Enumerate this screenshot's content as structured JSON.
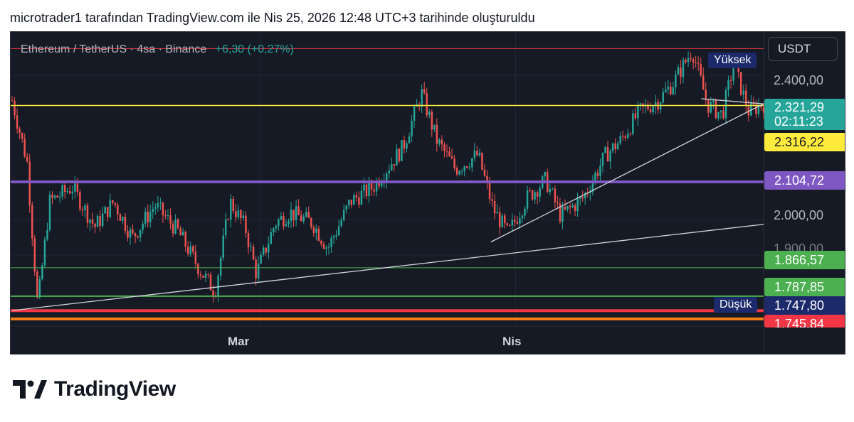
{
  "caption": "microtrader1 tarafından TradingView.com ile Nis 25, 2026 12:48 UTC+3 tarihinde oluşturuldu",
  "legend": {
    "symbol": "Ethereum / TetherUS · 4sa · Binance",
    "change": "+6,30 (+0,27%)"
  },
  "currency_button": "USDT",
  "brand": {
    "name": "TradingView"
  },
  "colors": {
    "background": "#161a25",
    "up": "#26a69a",
    "down": "#ef5350",
    "purple_line": "#7e57c2",
    "orange_line": "#f57f17",
    "red_line": "#f23645",
    "green_line": "#4caf50",
    "yellow_line": "#ffeb3b"
  },
  "chart_data": {
    "type": "candlestick",
    "symbol": "Ethereum / TetherUS",
    "interval": "4sa",
    "exchange": "Binance",
    "x_labels": [
      "Mar",
      "Nis"
    ],
    "y_range": [
      1705,
      2520
    ],
    "y_ticks": [
      "2.400,00",
      "2.000,00",
      "1.900,00"
    ],
    "price_tags": [
      {
        "label": "2.321,29",
        "sub": "02:11:23",
        "value": 2321.29,
        "color": "#26a69a"
      },
      {
        "label": "2.316,22",
        "value": 2316.22,
        "color": "#ffeb3b"
      },
      {
        "label": "2.104,72",
        "value": 2104.72,
        "color": "#7e57c2"
      },
      {
        "label": "1.866,57",
        "value": 1866.57,
        "color": "#4caf50"
      },
      {
        "label": "1.787,85",
        "value": 1787.85,
        "color": "#4caf50"
      },
      {
        "label": "1.747,80",
        "value": 1747.8,
        "color": "#1c2a6b"
      },
      {
        "label": "1.745,84",
        "value": 1745.84,
        "color": "#f23645"
      }
    ],
    "markers": {
      "high_label": "Yüksek",
      "low_label": "Düşük",
      "high": 2474,
      "low": 1747.8
    },
    "horizontal_lines": [
      {
        "value": 2474,
        "color": "#f23645",
        "width": 1
      },
      {
        "value": 2316.22,
        "color": "#ffeb3b",
        "width": 1.5
      },
      {
        "value": 2104.72,
        "color": "#7e57c2",
        "width": 4
      },
      {
        "value": 1866.57,
        "color": "#4caf50",
        "width": 1
      },
      {
        "value": 1787.85,
        "color": "#4caf50",
        "width": 2
      },
      {
        "value": 1747.8,
        "color": "#f23645",
        "width": 4
      },
      {
        "value": 1725,
        "color": "#f57f17",
        "width": 4
      }
    ],
    "trendlines": [
      {
        "from": [
          0,
          1748
        ],
        "to": [
          1,
          1987
        ]
      },
      {
        "from": [
          0.637,
          1938
        ],
        "to": [
          1,
          2321
        ]
      },
      {
        "from": [
          0.917,
          2335
        ],
        "to": [
          1,
          2321
        ]
      }
    ],
    "waypoints": [
      [
        0,
        2330
      ],
      [
        0.02,
        2160
      ],
      [
        0.034,
        1760
      ],
      [
        0.05,
        2050
      ],
      [
        0.08,
        2090
      ],
      [
        0.11,
        1980
      ],
      [
        0.135,
        2050
      ],
      [
        0.16,
        1950
      ],
      [
        0.19,
        2040
      ],
      [
        0.22,
        1970
      ],
      [
        0.25,
        1860
      ],
      [
        0.27,
        1800
      ],
      [
        0.29,
        2050
      ],
      [
        0.31,
        1980
      ],
      [
        0.325,
        1850
      ],
      [
        0.35,
        1990
      ],
      [
        0.37,
        2020
      ],
      [
        0.4,
        1990
      ],
      [
        0.42,
        1920
      ],
      [
        0.45,
        2050
      ],
      [
        0.48,
        2090
      ],
      [
        0.52,
        2200
      ],
      [
        0.545,
        2350
      ],
      [
        0.565,
        2220
      ],
      [
        0.59,
        2140
      ],
      [
        0.62,
        2180
      ],
      [
        0.64,
        2030
      ],
      [
        0.66,
        1960
      ],
      [
        0.685,
        2060
      ],
      [
        0.71,
        2110
      ],
      [
        0.73,
        2010
      ],
      [
        0.76,
        2060
      ],
      [
        0.79,
        2180
      ],
      [
        0.81,
        2220
      ],
      [
        0.835,
        2300
      ],
      [
        0.86,
        2330
      ],
      [
        0.88,
        2380
      ],
      [
        0.905,
        2470
      ],
      [
        0.925,
        2320
      ],
      [
        0.945,
        2290
      ],
      [
        0.96,
        2430
      ],
      [
        0.98,
        2300
      ],
      [
        1,
        2321
      ]
    ]
  }
}
